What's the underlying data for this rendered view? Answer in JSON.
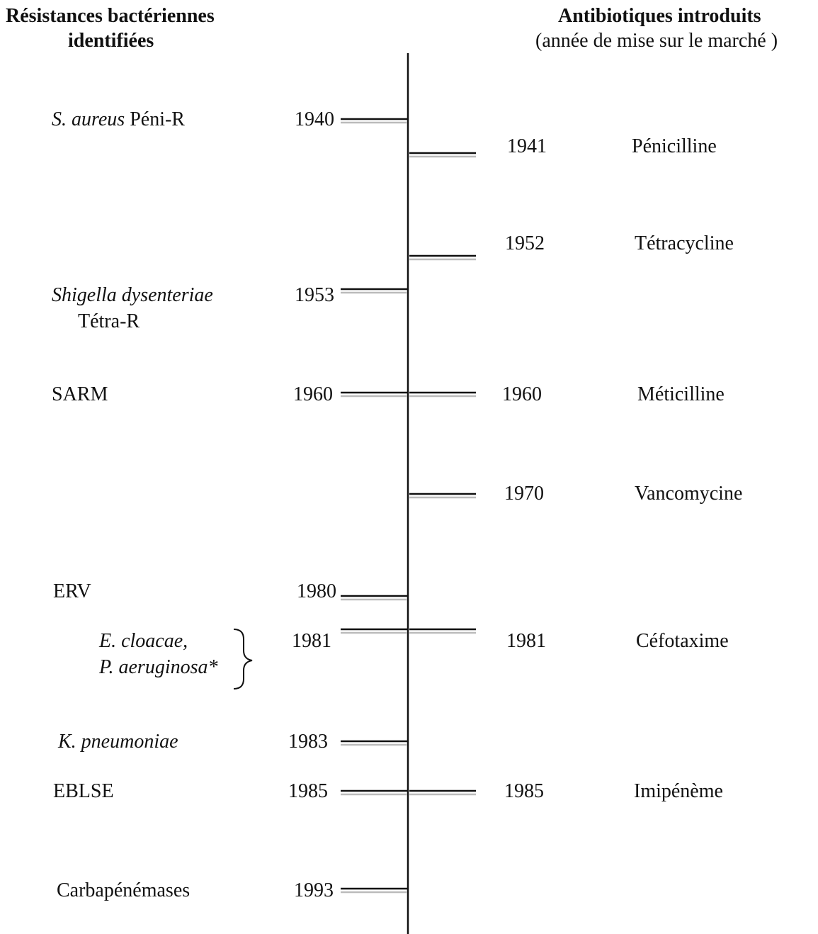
{
  "header": {
    "left_title": [
      "Résistances bactériennes",
      "identifiées"
    ],
    "right_title": "Antibiotiques introduits",
    "right_subtitle": "(année de mise sur le marché )"
  },
  "resistances": [
    {
      "year": 1940,
      "organism": "S. aureus",
      "resistance": "Péni-R"
    },
    {
      "year": 1953,
      "organism": "Shigella dysenteriae",
      "resistance": "Tétra-R"
    },
    {
      "year": 1960,
      "label": "SARM"
    },
    {
      "year": 1980,
      "label": "ERV"
    },
    {
      "year": 1981,
      "organisms": [
        "E. cloacae,",
        "P. aeruginosa*"
      ]
    },
    {
      "year": 1983,
      "organism": "K. pneumoniae"
    },
    {
      "year": 1985,
      "label": "EBLSE"
    },
    {
      "year": 1993,
      "label": "Carbapénémases"
    }
  ],
  "antibiotics": [
    {
      "year": 1941,
      "name": "Pénicilline"
    },
    {
      "year": 1952,
      "name": "Tétracycline"
    },
    {
      "year": 1960,
      "name": "Méticilline"
    },
    {
      "year": 1970,
      "name": "Vancomycine"
    },
    {
      "year": 1981,
      "name": "Céfotaxime"
    },
    {
      "year": 1985,
      "name": "Imipénème"
    }
  ]
}
